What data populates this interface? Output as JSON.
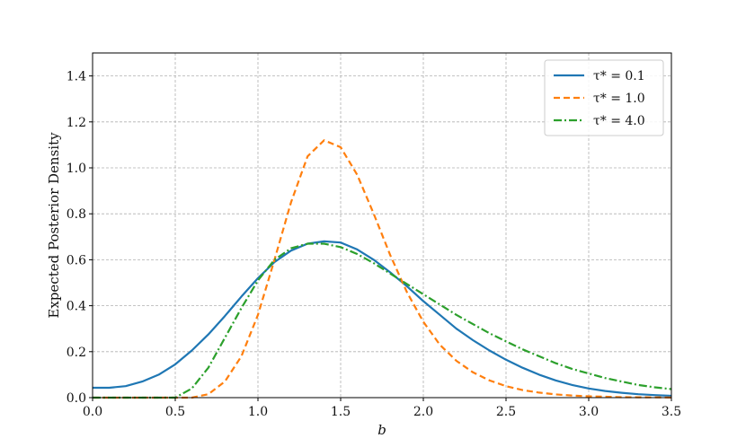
{
  "chart_data": {
    "type": "line",
    "title": "",
    "xlabel": "b",
    "ylabel": "Expected Posterior Density",
    "xlim": [
      0.0,
      3.5
    ],
    "ylim": [
      0.0,
      1.5
    ],
    "xticks": [
      0.0,
      0.5,
      1.0,
      1.5,
      2.0,
      2.5,
      3.0,
      3.5
    ],
    "yticks": [
      0.0,
      0.2,
      0.4,
      0.6,
      0.8,
      1.0,
      1.2,
      1.4
    ],
    "xtick_labels": [
      "0.0",
      "0.5",
      "1.0",
      "1.5",
      "2.0",
      "2.5",
      "3.0",
      "3.5"
    ],
    "ytick_labels": [
      "0.0",
      "0.2",
      "0.4",
      "0.6",
      "0.8",
      "1.0",
      "1.2",
      "1.4"
    ],
    "grid": true,
    "legend_position": "top-right",
    "series": [
      {
        "name": "τ* = 0.1",
        "color": "#1f77b4",
        "style": "solid",
        "x": [
          0.0,
          0.1,
          0.2,
          0.3,
          0.4,
          0.5,
          0.6,
          0.7,
          0.8,
          0.9,
          1.0,
          1.1,
          1.2,
          1.3,
          1.4,
          1.5,
          1.6,
          1.7,
          1.8,
          1.9,
          2.0,
          2.1,
          2.2,
          2.3,
          2.4,
          2.5,
          2.6,
          2.7,
          2.8,
          2.9,
          3.0,
          3.1,
          3.2,
          3.3,
          3.4,
          3.5
        ],
        "y": [
          0.043,
          0.043,
          0.05,
          0.07,
          0.1,
          0.145,
          0.205,
          0.275,
          0.355,
          0.44,
          0.52,
          0.59,
          0.64,
          0.67,
          0.68,
          0.675,
          0.645,
          0.6,
          0.545,
          0.485,
          0.42,
          0.36,
          0.3,
          0.25,
          0.205,
          0.165,
          0.13,
          0.1,
          0.075,
          0.055,
          0.04,
          0.029,
          0.021,
          0.015,
          0.011,
          0.008
        ]
      },
      {
        "name": "τ* = 1.0",
        "color": "#ff7f0e",
        "style": "dashed",
        "x": [
          0.0,
          0.1,
          0.2,
          0.3,
          0.4,
          0.5,
          0.6,
          0.7,
          0.8,
          0.9,
          1.0,
          1.1,
          1.2,
          1.3,
          1.4,
          1.5,
          1.6,
          1.7,
          1.8,
          1.9,
          2.0,
          2.1,
          2.2,
          2.3,
          2.4,
          2.5,
          2.6,
          2.7,
          2.8,
          2.9,
          3.0,
          3.1,
          3.2,
          3.3,
          3.4,
          3.5
        ],
        "y": [
          0.0,
          0.0,
          0.0,
          0.0,
          0.0,
          0.0,
          0.0,
          0.015,
          0.07,
          0.18,
          0.36,
          0.6,
          0.85,
          1.05,
          1.12,
          1.09,
          0.97,
          0.8,
          0.62,
          0.46,
          0.33,
          0.23,
          0.16,
          0.11,
          0.075,
          0.05,
          0.033,
          0.022,
          0.014,
          0.009,
          0.006,
          0.004,
          0.002,
          0.0015,
          0.001,
          0.0005
        ]
      },
      {
        "name": "τ* = 4.0",
        "color": "#2ca02c",
        "style": "dashdot",
        "x": [
          0.0,
          0.1,
          0.2,
          0.3,
          0.4,
          0.5,
          0.6,
          0.7,
          0.8,
          0.9,
          1.0,
          1.1,
          1.2,
          1.3,
          1.4,
          1.5,
          1.6,
          1.7,
          1.8,
          1.9,
          2.0,
          2.1,
          2.2,
          2.3,
          2.4,
          2.5,
          2.6,
          2.7,
          2.8,
          2.9,
          3.0,
          3.1,
          3.2,
          3.3,
          3.4,
          3.5
        ],
        "y": [
          0.0,
          0.0,
          0.0,
          0.0,
          0.0,
          0.0,
          0.04,
          0.13,
          0.26,
          0.39,
          0.51,
          0.6,
          0.65,
          0.67,
          0.67,
          0.655,
          0.625,
          0.585,
          0.54,
          0.495,
          0.45,
          0.405,
          0.36,
          0.32,
          0.28,
          0.245,
          0.21,
          0.18,
          0.15,
          0.125,
          0.105,
          0.085,
          0.07,
          0.055,
          0.045,
          0.037
        ]
      }
    ]
  }
}
